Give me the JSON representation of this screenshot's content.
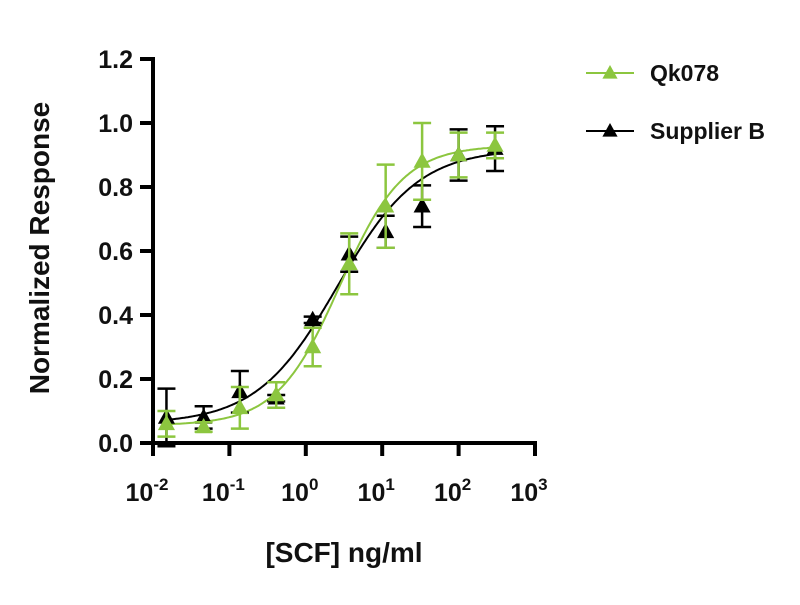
{
  "chart_data": {
    "type": "scatter",
    "title": "",
    "xlabel": "[SCF] ng/ml",
    "ylabel": "Normalized Response",
    "xscale": "log",
    "xlim": [
      0.01,
      1000
    ],
    "ylim": [
      0,
      1.2
    ],
    "xticks": [
      {
        "value": 0.01,
        "base": "10",
        "exp": "-2"
      },
      {
        "value": 0.1,
        "base": "10",
        "exp": "-1"
      },
      {
        "value": 1,
        "base": "10",
        "exp": "0"
      },
      {
        "value": 10,
        "base": "10",
        "exp": "1"
      },
      {
        "value": 100,
        "base": "10",
        "exp": "2"
      },
      {
        "value": 1000,
        "base": "10",
        "exp": "3"
      }
    ],
    "yticks": [
      "0.0",
      "0.2",
      "0.4",
      "0.6",
      "0.8",
      "1.0",
      "1.2"
    ],
    "grid": false,
    "legend_position": "top-right",
    "x": [
      0.015,
      0.046,
      0.137,
      0.41,
      1.23,
      3.7,
      11.1,
      33.3,
      100,
      300
    ],
    "series": [
      {
        "name": "Qk078",
        "color": "#8cc63f",
        "marker": "triangle",
        "y": [
          0.06,
          0.05,
          0.11,
          0.15,
          0.3,
          0.56,
          0.74,
          0.88,
          0.9,
          0.93
        ],
        "error": [
          0.04,
          0.015,
          0.065,
          0.04,
          0.06,
          0.095,
          0.13,
          0.12,
          0.07,
          0.04
        ],
        "fit": {
          "model": "4PL",
          "bottom": 0.055,
          "top": 0.93,
          "ec50": 2.8,
          "hill": 1.05
        }
      },
      {
        "name": "Supplier B",
        "color": "#000000",
        "marker": "triangle",
        "y": [
          0.08,
          0.08,
          0.16,
          0.14,
          0.385,
          0.59,
          0.66,
          0.74,
          0.9,
          0.92
        ],
        "error": [
          0.09,
          0.035,
          0.065,
          0.01,
          0.01,
          0.055,
          0.05,
          0.065,
          0.08,
          0.07
        ],
        "fit": {
          "model": "4PL",
          "bottom": 0.06,
          "top": 0.92,
          "ec50": 2.6,
          "hill": 0.82
        }
      }
    ]
  }
}
